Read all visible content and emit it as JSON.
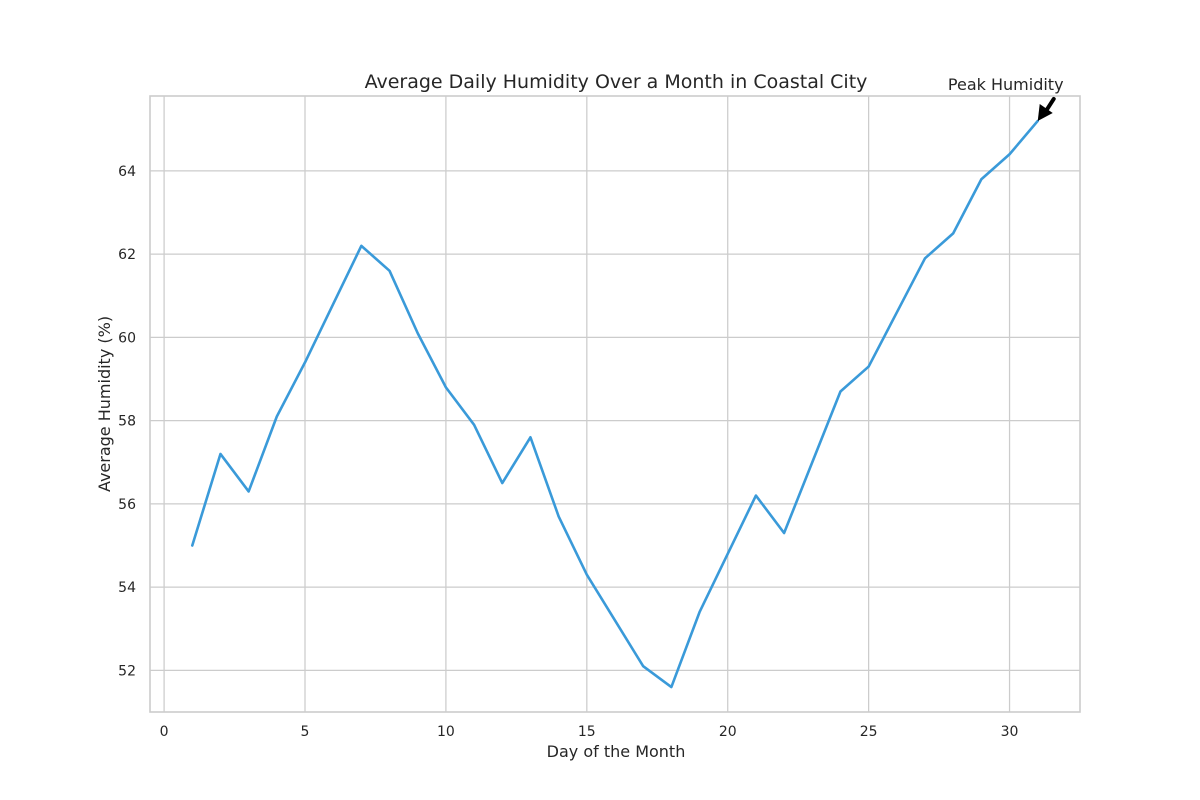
{
  "chart_data": {
    "type": "line",
    "title": "Average Daily Humidity Over a Month in Coastal City",
    "xlabel": "Day of the Month",
    "ylabel": "Average Humidity (%)",
    "xlim": [
      -0.5,
      32.5
    ],
    "ylim": [
      51.0,
      65.8
    ],
    "x_ticks": [
      0,
      5,
      10,
      15,
      20,
      25,
      30
    ],
    "y_ticks": [
      52,
      54,
      56,
      58,
      60,
      62,
      64
    ],
    "grid": true,
    "legend": "none",
    "x": [
      1,
      2,
      3,
      4,
      5,
      6,
      7,
      8,
      9,
      10,
      11,
      12,
      13,
      14,
      15,
      16,
      17,
      18,
      19,
      20,
      21,
      22,
      23,
      24,
      25,
      26,
      27,
      28,
      29,
      30,
      31
    ],
    "series": [
      {
        "color": "#3a9ad9",
        "values": [
          55.0,
          57.2,
          56.3,
          58.1,
          59.4,
          60.8,
          62.2,
          61.6,
          60.1,
          58.8,
          57.9,
          56.5,
          57.6,
          55.7,
          54.3,
          53.2,
          52.1,
          51.6,
          53.4,
          54.8,
          56.2,
          55.3,
          57.0,
          58.7,
          59.3,
          60.6,
          61.9,
          62.5,
          63.8,
          64.4,
          65.2
        ]
      }
    ],
    "annotations": [
      {
        "text": "Peak Humidity",
        "x": 31,
        "y": 65.2,
        "arrow": true
      }
    ]
  }
}
